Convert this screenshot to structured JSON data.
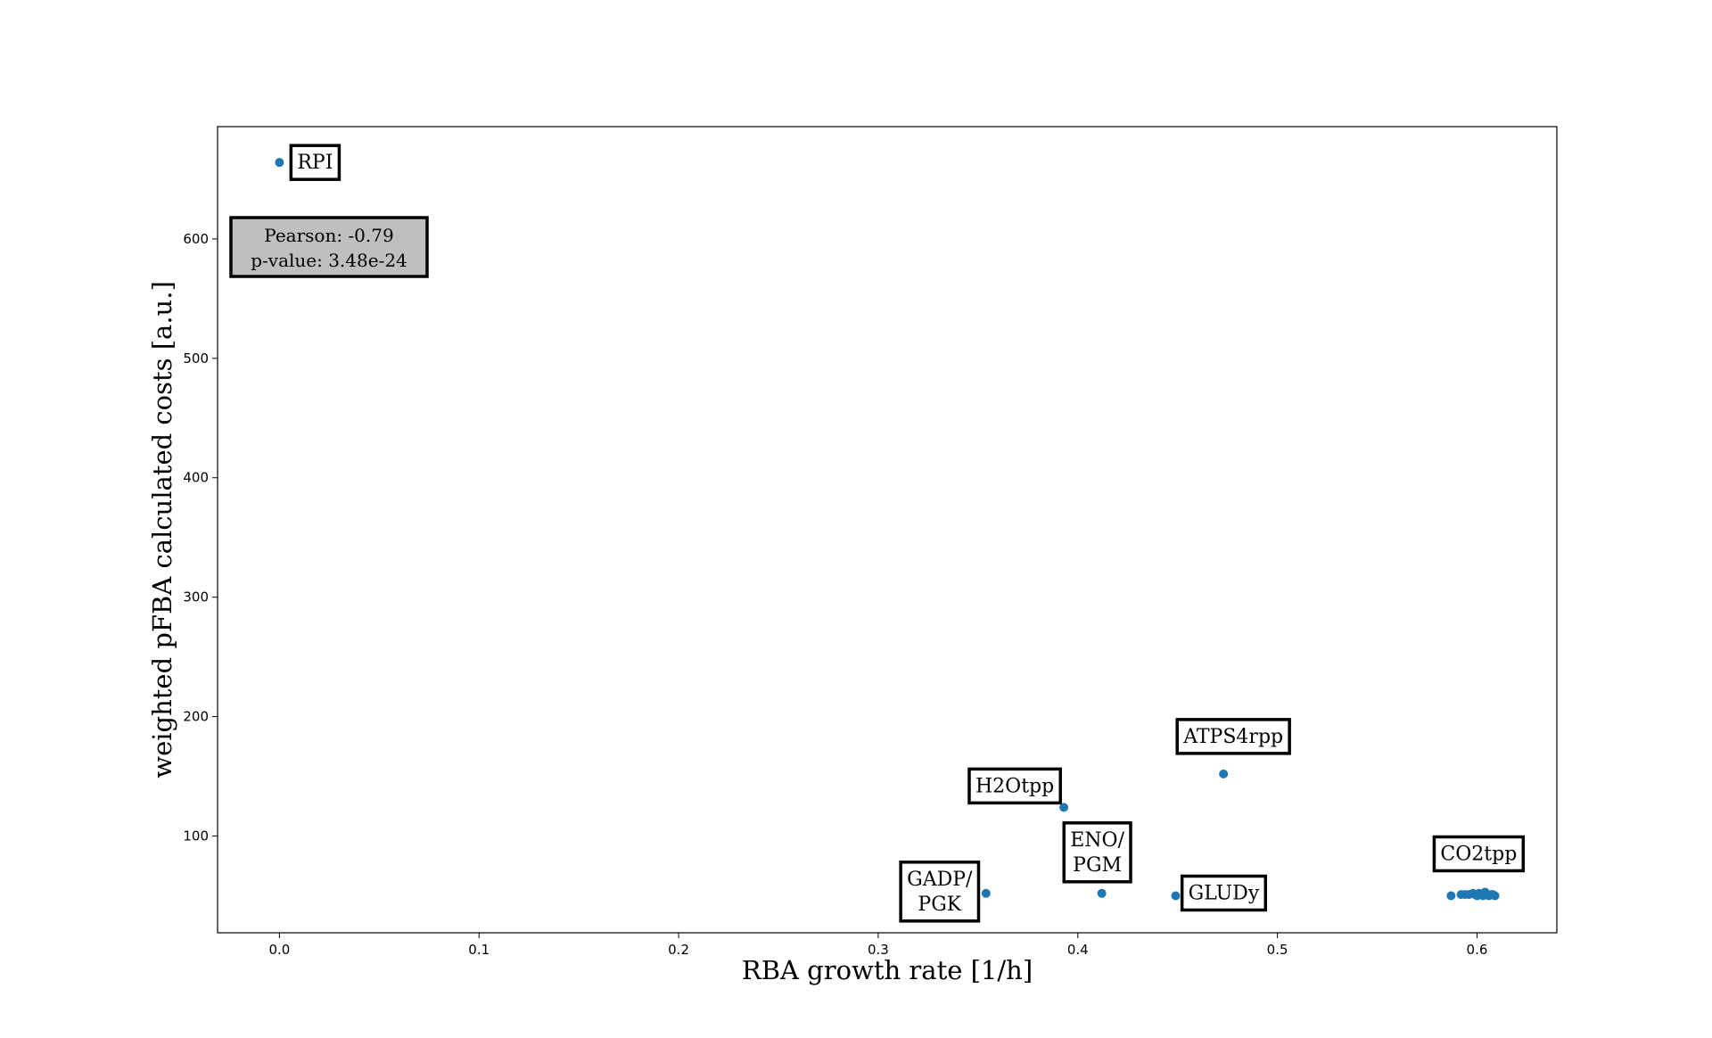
{
  "chart_data": {
    "type": "scatter",
    "title": "",
    "xlabel": "RBA growth rate [1/h]",
    "ylabel": "weighted pFBA calculated costs [a.u.]",
    "xlim": [
      -0.031,
      0.64
    ],
    "ylim": [
      19,
      694
    ],
    "x_ticks": [
      0.0,
      0.1,
      0.2,
      0.3,
      0.4,
      0.5,
      0.6
    ],
    "x_tick_labels": [
      "0.0",
      "0.1",
      "0.2",
      "0.3",
      "0.4",
      "0.5",
      "0.6"
    ],
    "y_ticks": [
      100,
      200,
      300,
      400,
      500,
      600
    ],
    "y_tick_labels": [
      "100",
      "200",
      "300",
      "400",
      "500",
      "600"
    ],
    "grid": false,
    "marker_color": "#1f77b4",
    "series": [
      {
        "points": [
          {
            "x": 0.0,
            "y": 664
          },
          {
            "x": 0.354,
            "y": 52
          },
          {
            "x": 0.393,
            "y": 124
          },
          {
            "x": 0.412,
            "y": 52
          },
          {
            "x": 0.449,
            "y": 50
          },
          {
            "x": 0.473,
            "y": 152
          },
          {
            "x": 0.587,
            "y": 50
          },
          {
            "x": 0.592,
            "y": 51
          },
          {
            "x": 0.594,
            "y": 51
          },
          {
            "x": 0.596,
            "y": 51
          },
          {
            "x": 0.598,
            "y": 52
          },
          {
            "x": 0.599,
            "y": 51
          },
          {
            "x": 0.6,
            "y": 50
          },
          {
            "x": 0.601,
            "y": 52
          },
          {
            "x": 0.602,
            "y": 51
          },
          {
            "x": 0.603,
            "y": 50
          },
          {
            "x": 0.604,
            "y": 53
          },
          {
            "x": 0.605,
            "y": 51
          },
          {
            "x": 0.606,
            "y": 50
          },
          {
            "x": 0.607,
            "y": 51
          },
          {
            "x": 0.608,
            "y": 51
          },
          {
            "x": 0.609,
            "y": 50
          }
        ]
      }
    ],
    "annotations": [
      {
        "lines": [
          "RPI"
        ],
        "point_index": 0
      },
      {
        "lines": [
          "GADP/",
          "PGK"
        ],
        "point_index": 1
      },
      {
        "lines": [
          "H2Otpp"
        ],
        "point_index": 2
      },
      {
        "lines": [
          "ENO/",
          "PGM"
        ],
        "point_index": 3
      },
      {
        "lines": [
          "GLUDy"
        ],
        "point_index": 4
      },
      {
        "lines": [
          "ATPS4rpp"
        ],
        "point_index": 5
      },
      {
        "lines": [
          "CO2tpp"
        ],
        "point_index": 6
      }
    ],
    "stats_box": {
      "lines": [
        "Pearson: -0.79",
        "p-value: 3.48e-24"
      ],
      "fill": "#bfbfbf",
      "placement": "upper-left"
    }
  }
}
